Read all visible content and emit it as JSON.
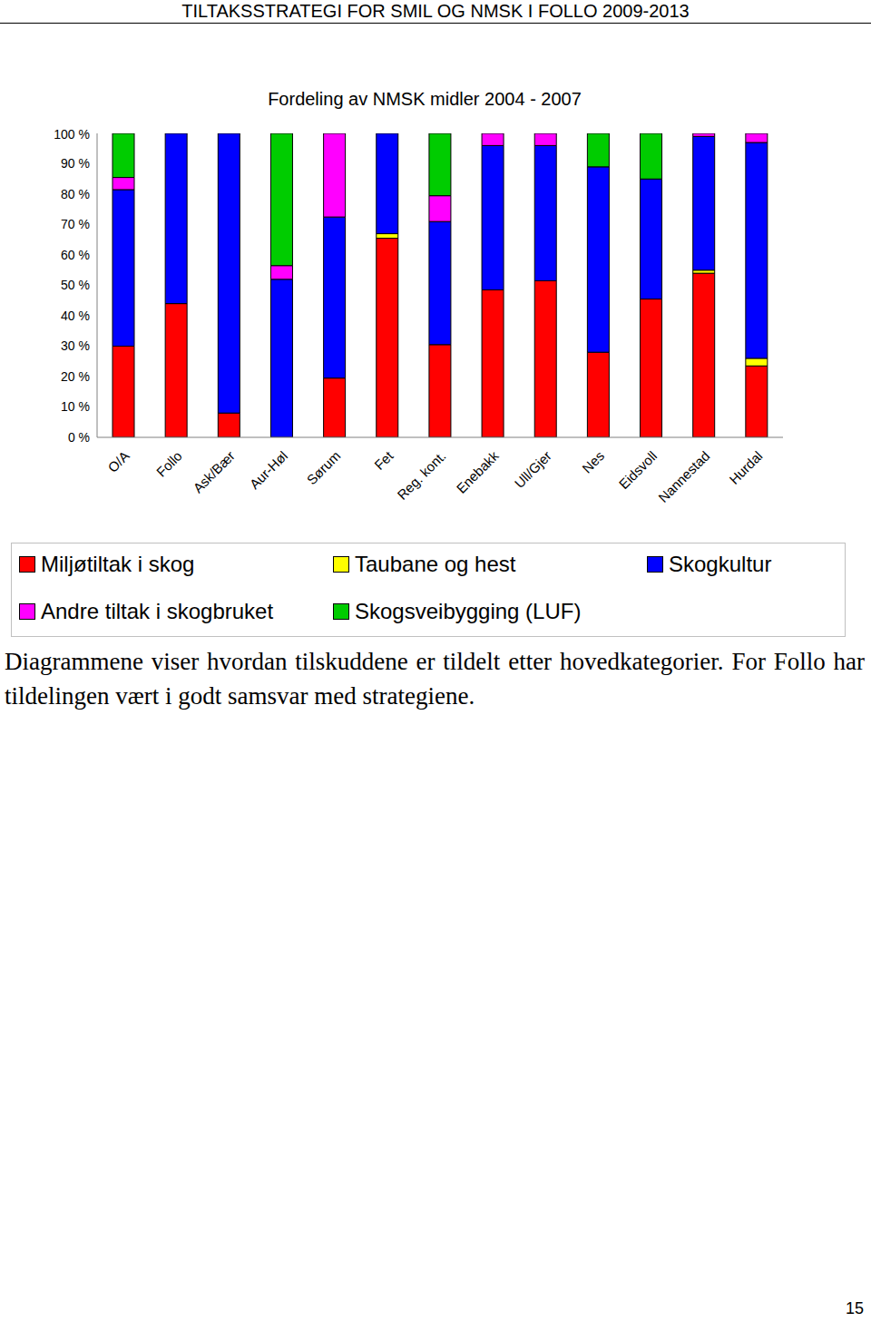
{
  "header": "TILTAKSSTRATEGI FOR SMIL OG NMSK I FOLLO 2009-2013",
  "chart_data": {
    "type": "bar",
    "stacked": true,
    "title": "Fordeling av NMSK midler 2004 - 2007",
    "categories": [
      "O/A",
      "Follo",
      "Ask/Bær",
      "Aur-Høl",
      "Sørum",
      "Fet",
      "Reg. kont.",
      "Enebakk",
      "Ull/Gjer",
      "Nes",
      "Eidsvoll",
      "Nannestad",
      "Hurdal"
    ],
    "series": [
      {
        "name": "Miljøtiltak i skog",
        "color": "#ff0000",
        "values": [
          30,
          44,
          8,
          0,
          19.5,
          65.5,
          30.5,
          48.5,
          51.5,
          28,
          45.5,
          54,
          23.5
        ]
      },
      {
        "name": "Taubane og hest",
        "color": "#ffff00",
        "values": [
          0,
          0,
          0,
          0,
          0,
          1.5,
          0,
          0,
          0,
          0,
          0,
          1,
          2.5
        ]
      },
      {
        "name": "Skogkultur",
        "color": "#0000ff",
        "values": [
          51.5,
          56,
          92,
          52,
          53,
          33,
          40.5,
          47.5,
          44.5,
          61,
          39.5,
          44,
          71
        ]
      },
      {
        "name": "Andre tiltak i skogbruket",
        "color": "#ff00ff",
        "values": [
          4,
          0,
          0,
          4.5,
          27.5,
          0,
          8.5,
          4,
          4,
          0,
          0,
          1,
          3
        ]
      },
      {
        "name": "Skogsveibygging (LUF)",
        "color": "#00cc00",
        "values": [
          14.5,
          0,
          0,
          43.5,
          0,
          0,
          20.5,
          0,
          0,
          11,
          15,
          0,
          0
        ]
      }
    ],
    "ylim": [
      0,
      100
    ],
    "yticks": [
      {
        "value": 0,
        "label": "0 %"
      },
      {
        "value": 10,
        "label": "10 %"
      },
      {
        "value": 20,
        "label": "20 %"
      },
      {
        "value": 30,
        "label": "30 %"
      },
      {
        "value": 40,
        "label": "40 %"
      },
      {
        "value": 50,
        "label": "50 %"
      },
      {
        "value": 60,
        "label": "60 %"
      },
      {
        "value": 70,
        "label": "70 %"
      },
      {
        "value": 80,
        "label": "80 %"
      },
      {
        "value": 90,
        "label": "90 %"
      },
      {
        "value": 100,
        "label": "100 %"
      }
    ],
    "grid": false,
    "legend": "bottom"
  },
  "caption": "Diagrammene viser hvordan tilskuddene er tildelt etter hovedkategorier. For Follo har tildelingen vært i godt samsvar med strategiene.",
  "page_number": "15"
}
